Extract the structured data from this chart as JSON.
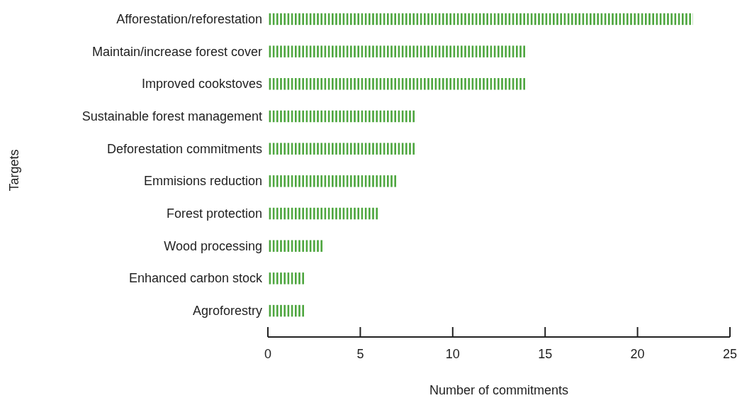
{
  "chart_data": {
    "type": "bar",
    "orientation": "horizontal",
    "xlabel": "Number of commitments",
    "ylabel": "Targets",
    "categories": [
      "Afforestation/reforestation",
      "Maintain/increase forest cover",
      "Improved cookstoves",
      "Sustainable forest management",
      "Deforestation commitments",
      "Emmisions reduction",
      "Forest protection",
      "Wood processing",
      "Enhanced carbon stock",
      "Agroforestry"
    ],
    "values": [
      23,
      14,
      14,
      8,
      8,
      7,
      6,
      3,
      2,
      2
    ],
    "color": "#4ea63f",
    "xlim": [
      0,
      25
    ],
    "xticks": [
      0,
      5,
      10,
      15,
      20,
      25
    ],
    "grid": false
  }
}
